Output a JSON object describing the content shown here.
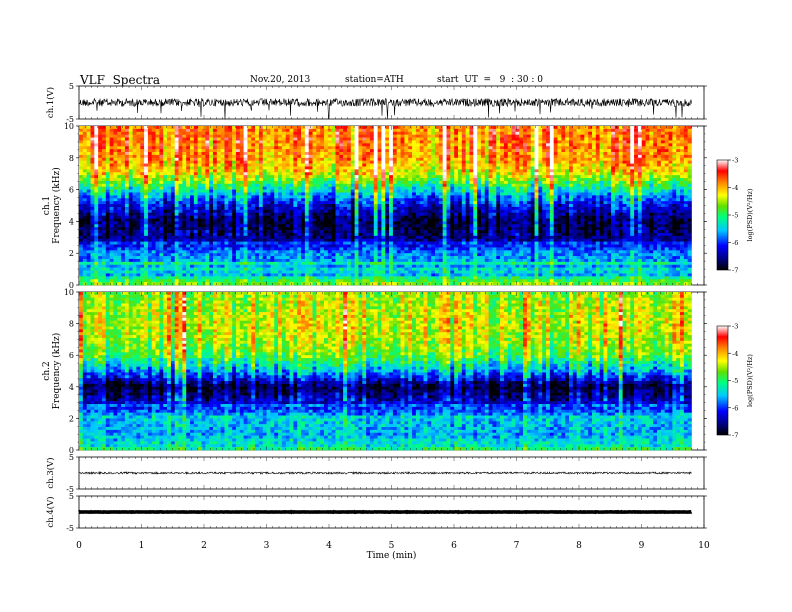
{
  "header": {
    "title": "VLF  Spectra",
    "date": "Nov.20, 2013",
    "station": "station=ATH",
    "start_ut": "start  UT  =   9  : 30 : 0"
  },
  "chart_data": [
    {
      "type": "line",
      "panel": "ch1-waveform",
      "ylabel": "ch.1(V)",
      "ylim": [
        -5,
        5
      ],
      "yticks": [
        "5",
        "-5"
      ],
      "x_range_min": [
        0,
        9.8
      ],
      "baseline": 0,
      "envelope": 1.2,
      "color": "#000000"
    },
    {
      "type": "heatmap",
      "panel": "ch1-spectrogram",
      "ylabel_channel": "ch.1",
      "ylabel": "Frequency  (kHz)",
      "ylim": [
        0,
        10
      ],
      "yticks": [
        "0",
        "2",
        "4",
        "6",
        "8",
        "10"
      ],
      "x_range_min": [
        0,
        9.8
      ],
      "colorbar": {
        "label": "log(PSD)(V²/Hz)",
        "range": [
          -7,
          -3
        ],
        "ticks": [
          "-3",
          "-4",
          "-5",
          "-6",
          "-7"
        ]
      },
      "profile_freq_khz": [
        0,
        0.5,
        1,
        2,
        3,
        4,
        5,
        6,
        7,
        8,
        9,
        10
      ],
      "profile_logpsd": [
        -4.6,
        -5.2,
        -5.6,
        -5.7,
        -6.6,
        -6.8,
        -6.2,
        -5.3,
        -4.3,
        -3.9,
        -3.8,
        -3.8
      ]
    },
    {
      "type": "heatmap",
      "panel": "ch2-spectrogram",
      "ylabel_channel": "ch.2",
      "ylabel": "Frequency  (kHz)",
      "ylim": [
        0,
        10
      ],
      "yticks": [
        "0",
        "2",
        "4",
        "6",
        "8",
        "10"
      ],
      "x_range_min": [
        0,
        9.8
      ],
      "colorbar": {
        "label": "log(PSD)(V²/Hz)",
        "range": [
          -7,
          -3
        ],
        "ticks": [
          "-3",
          "-4",
          "-5",
          "-6",
          "-7"
        ]
      },
      "profile_freq_khz": [
        0,
        0.5,
        1,
        2,
        3,
        4,
        5,
        6,
        7,
        8,
        9,
        10
      ],
      "profile_logpsd": [
        -5.0,
        -5.4,
        -5.6,
        -5.5,
        -6.3,
        -6.8,
        -5.6,
        -4.8,
        -4.5,
        -4.4,
        -4.5,
        -4.6
      ]
    },
    {
      "type": "line",
      "panel": "ch3-waveform",
      "ylabel": "ch.3(V)",
      "ylim": [
        -5,
        5
      ],
      "yticks": [
        "5",
        "-5"
      ],
      "x_range_min": [
        0,
        9.8
      ],
      "baseline": 0,
      "envelope": 0.3,
      "color": "#000000"
    },
    {
      "type": "line",
      "panel": "ch4-waveform",
      "ylabel": "ch.4(V)",
      "ylim": [
        -5,
        5
      ],
      "yticks": [
        "5",
        "-5"
      ],
      "x_range_min": [
        0,
        9.8
      ],
      "baseline": 0,
      "envelope": 0.05,
      "color": "#000000"
    }
  ],
  "x_axis": {
    "label": "Time  (min)",
    "range": [
      0,
      10
    ],
    "ticks": [
      "0",
      "1",
      "2",
      "3",
      "4",
      "5",
      "6",
      "7",
      "8",
      "9",
      "10"
    ]
  }
}
